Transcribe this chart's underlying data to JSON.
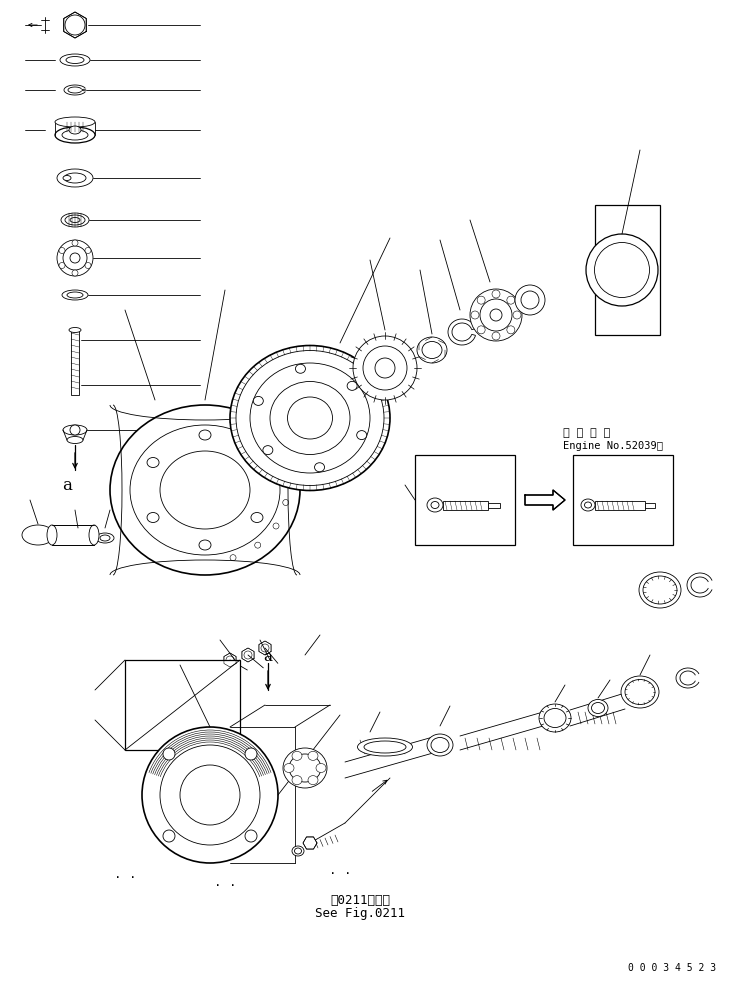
{
  "figure_width": 7.34,
  "figure_height": 9.83,
  "dpi": 100,
  "bg_color": "#ffffff",
  "line_color": "#000000",
  "annotation_engine_line1": "適 用 号 機",
  "annotation_engine_line2": "Engine No.52039～",
  "annotation_see_fig1": "第0211図参照",
  "annotation_see_fig2": "See Fig.0211",
  "part_number": "0 0 0 3 4 5 2 3",
  "label_a": "a"
}
